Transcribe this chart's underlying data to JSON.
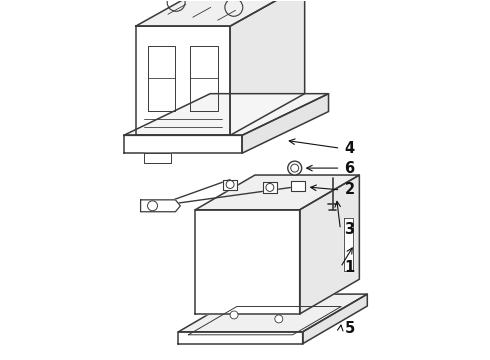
{
  "background_color": "#ffffff",
  "line_color": "#3a3a3a",
  "line_width": 1.1,
  "label_color": "#111111",
  "label_fontsize": 10.5,
  "figsize": [
    4.9,
    3.6
  ],
  "dpi": 100
}
